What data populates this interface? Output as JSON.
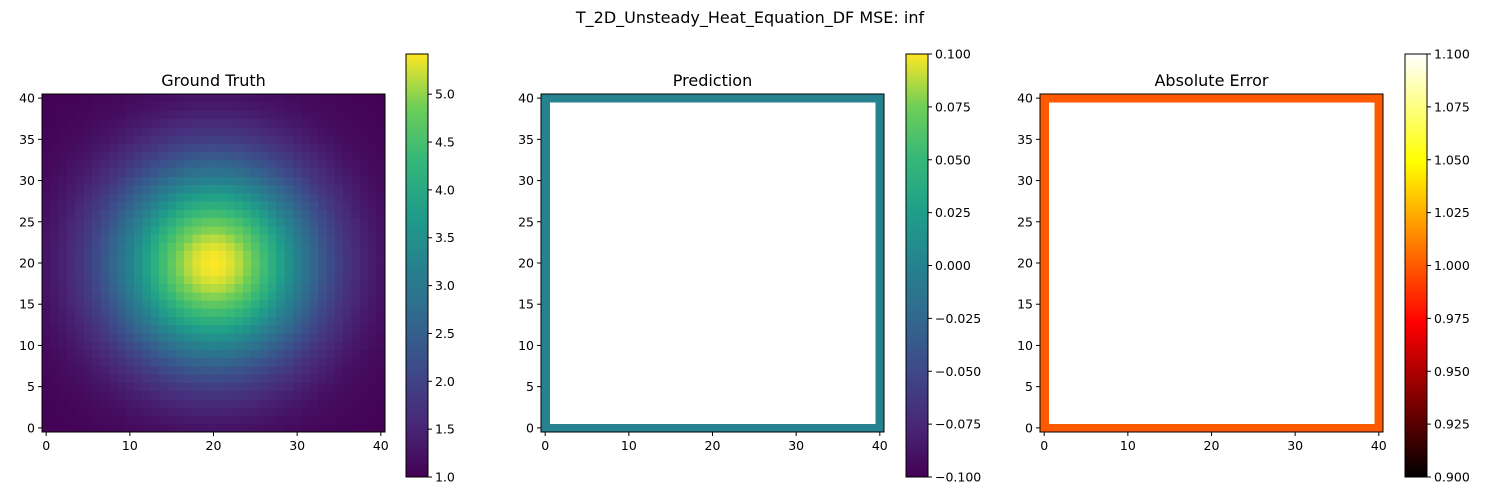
{
  "figure": {
    "suptitle": "T_2D_Unsteady_Heat_Equation_DF MSE: inf"
  },
  "chart_data": [
    {
      "type": "heatmap",
      "title": "Ground Truth",
      "colormap": "viridis",
      "grid_size": [
        41,
        41
      ],
      "field": "gaussian",
      "field_center": [
        20,
        20
      ],
      "field_base": 1.0,
      "field_peak": 5.42,
      "field_sigma": 8.5,
      "border_only": false,
      "xlim": [
        -0.5,
        40.5
      ],
      "ylim": [
        -0.5,
        40.5
      ],
      "xticks": [
        "0",
        "10",
        "20",
        "30",
        "40"
      ],
      "yticks": [
        "0",
        "5",
        "10",
        "15",
        "20",
        "25",
        "30",
        "35",
        "40"
      ],
      "colorbar": {
        "min": 1.0,
        "max": 5.42,
        "ticks": [
          "1.0",
          "1.5",
          "2.0",
          "2.5",
          "3.0",
          "3.5",
          "4.0",
          "4.5",
          "5.0"
        ]
      }
    },
    {
      "type": "heatmap",
      "title": "Prediction",
      "colormap": "viridis",
      "grid_size": [
        41,
        41
      ],
      "border_only": true,
      "border_value": 0.0,
      "border_color": "#21918c",
      "xlim": [
        -0.5,
        40.5
      ],
      "ylim": [
        -0.5,
        40.5
      ],
      "xticks": [
        "0",
        "10",
        "20",
        "30",
        "40"
      ],
      "yticks": [
        "0",
        "5",
        "10",
        "15",
        "20",
        "25",
        "30",
        "35",
        "40"
      ],
      "colorbar": {
        "min": -0.1,
        "max": 0.1,
        "ticks": [
          "−0.100",
          "−0.075",
          "−0.050",
          "−0.025",
          "0.000",
          "0.025",
          "0.050",
          "0.075",
          "0.100"
        ]
      }
    },
    {
      "type": "heatmap",
      "title": "Absolute Error",
      "colormap": "hot",
      "grid_size": [
        41,
        41
      ],
      "border_only": true,
      "border_value": 1.0,
      "border_color": "#ff5800",
      "xlim": [
        -0.5,
        40.5
      ],
      "ylim": [
        -0.5,
        40.5
      ],
      "xticks": [
        "0",
        "10",
        "20",
        "30",
        "40"
      ],
      "yticks": [
        "0",
        "5",
        "10",
        "15",
        "20",
        "25",
        "30",
        "35",
        "40"
      ],
      "colorbar": {
        "min": 0.9,
        "max": 1.1,
        "ticks": [
          "0.900",
          "0.925",
          "0.950",
          "0.975",
          "1.000",
          "1.025",
          "1.050",
          "1.075",
          "1.100"
        ]
      }
    }
  ]
}
